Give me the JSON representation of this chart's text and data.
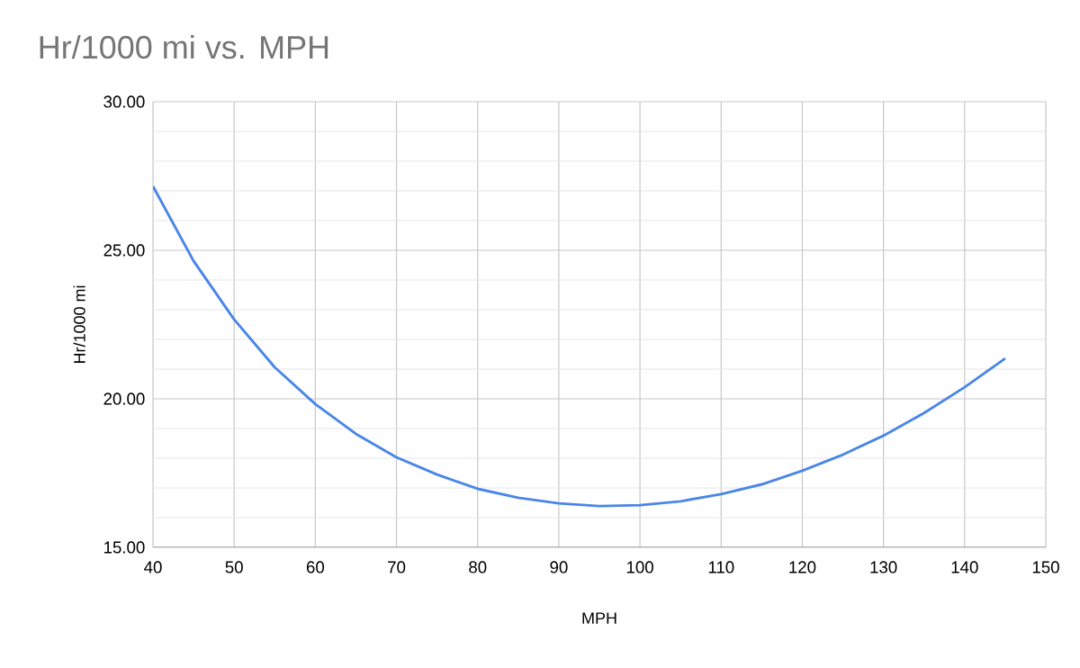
{
  "chart_data": {
    "type": "line",
    "title": "Hr/1000 mi vs. MPH",
    "xlabel": "MPH",
    "ylabel": "Hr/1000 mi",
    "x": [
      40,
      45,
      50,
      55,
      60,
      65,
      70,
      75,
      80,
      85,
      90,
      95,
      100,
      105,
      110,
      115,
      120,
      125,
      130,
      135,
      140,
      145
    ],
    "series": [
      {
        "color": "#4a86e8",
        "values": [
          27.15,
          24.64,
          22.67,
          21.06,
          19.82,
          18.82,
          18.03,
          17.45,
          16.97,
          16.67,
          16.48,
          16.39,
          16.42,
          16.55,
          16.79,
          17.12,
          17.58,
          18.12,
          18.76,
          19.52,
          20.39,
          21.36
        ]
      }
    ],
    "xlim": [
      40,
      150
    ],
    "xticks": [
      40,
      50,
      60,
      70,
      80,
      90,
      100,
      110,
      120,
      130,
      140,
      150
    ],
    "ylim": [
      15,
      30
    ],
    "yticks": [
      {
        "value": 15,
        "label": "15.00"
      },
      {
        "value": 20,
        "label": "20.00"
      },
      {
        "value": 25,
        "label": "25.00"
      },
      {
        "value": 30,
        "label": "30.00"
      }
    ],
    "grid": true,
    "marker": "none",
    "line_style": "solid"
  }
}
